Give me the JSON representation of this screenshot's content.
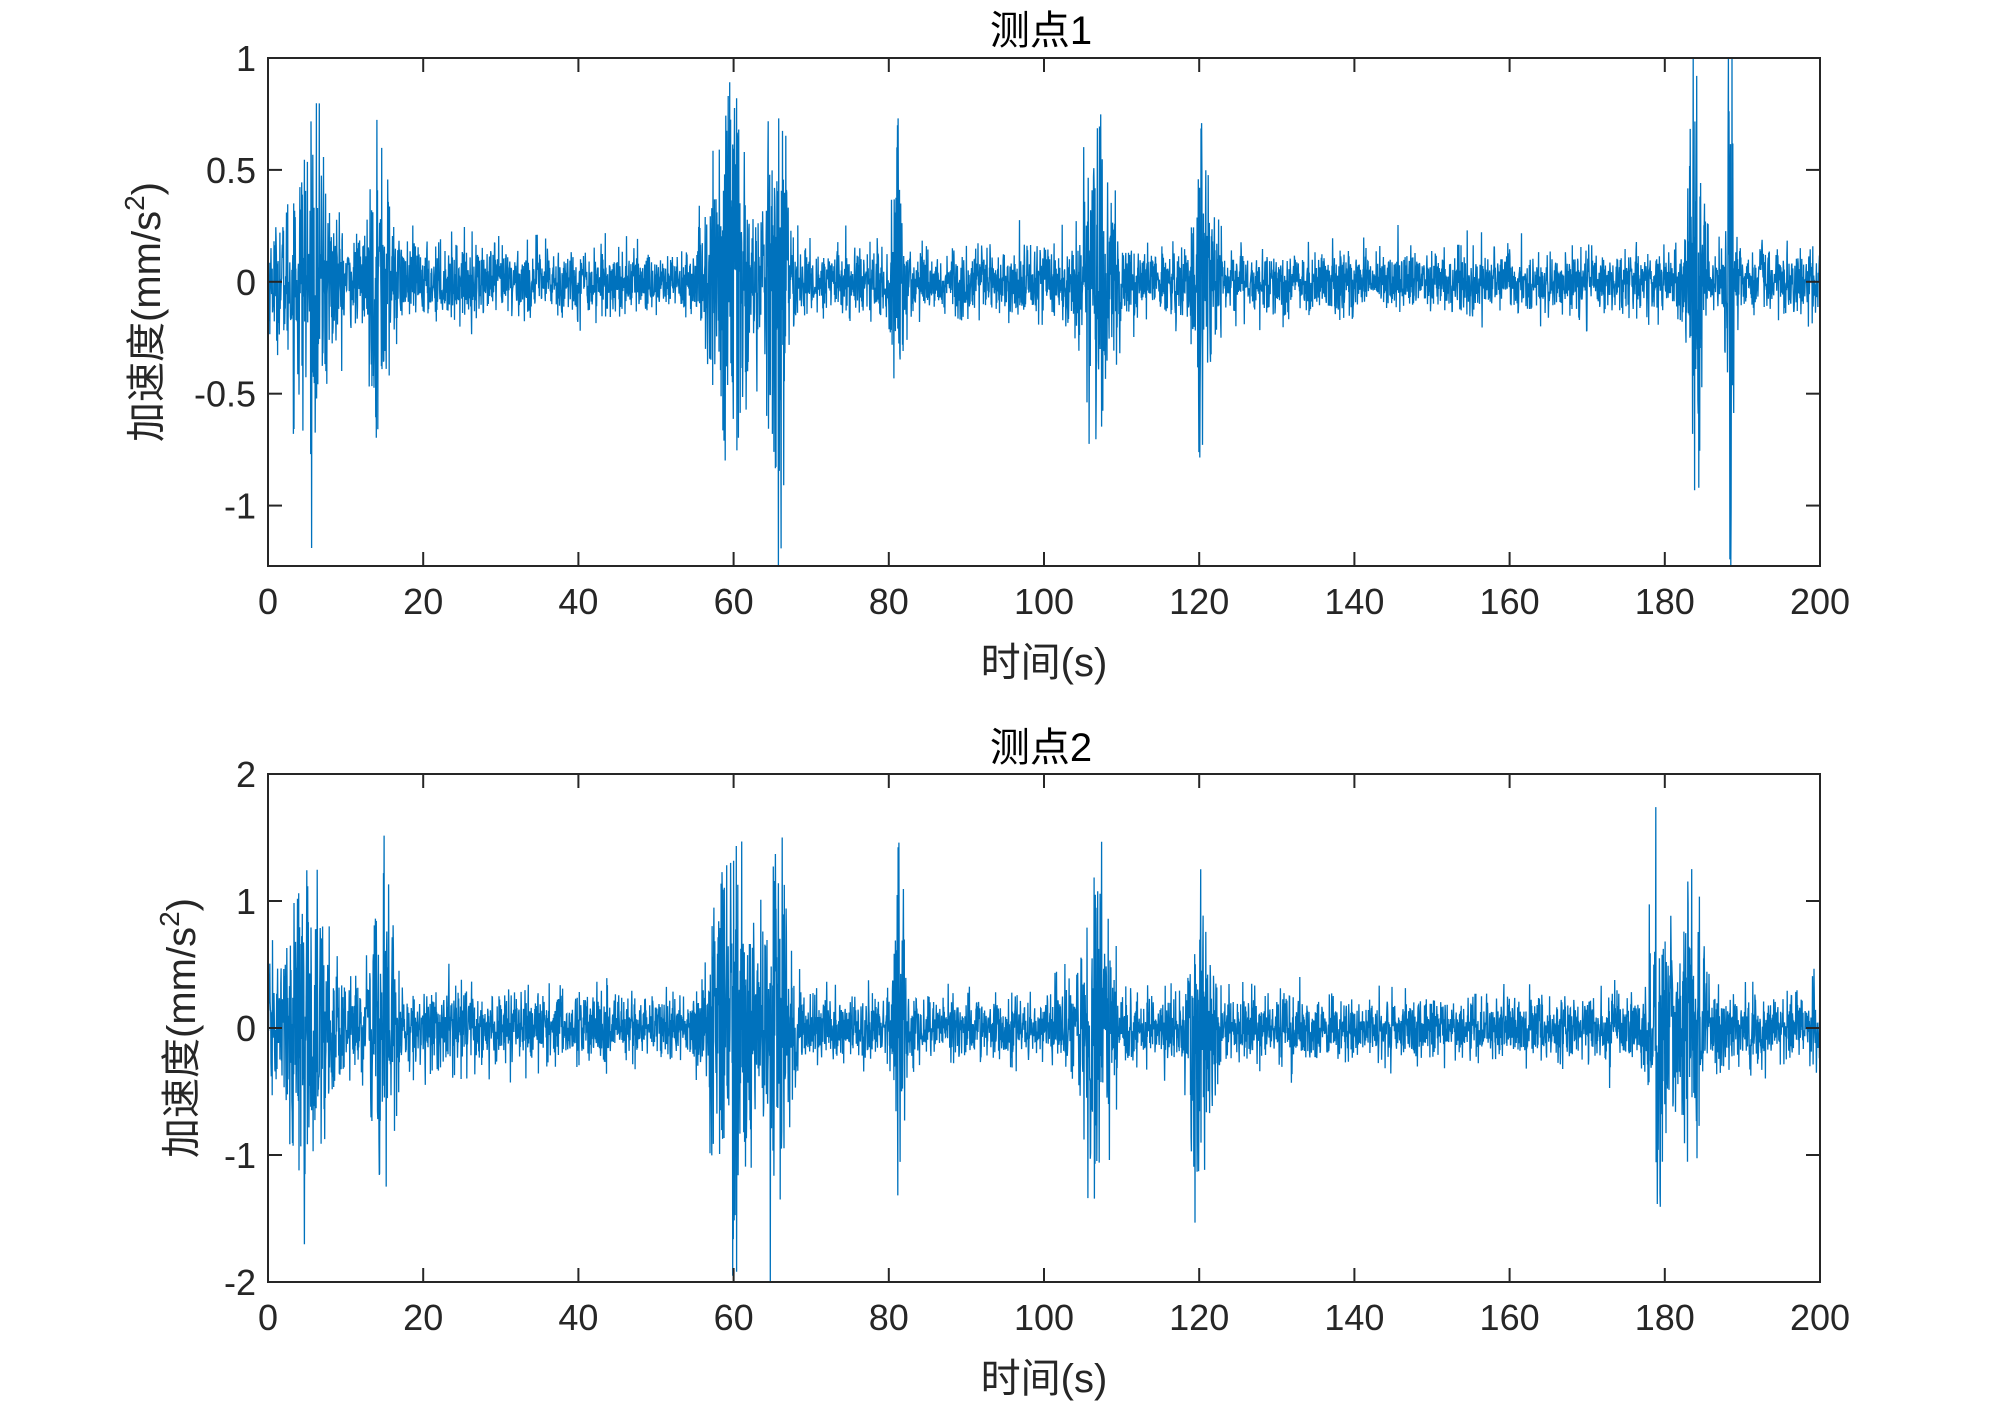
{
  "chart_data": [
    {
      "type": "line",
      "title": "测点1",
      "xlabel": "时间(s)",
      "ylabel_main": "加速度(mm/s",
      "ylabel_sup": "2",
      "ylabel_close": ")",
      "xlim": [
        0,
        200
      ],
      "ylim": [
        -1.27,
        1.0
      ],
      "xticks": [
        0,
        20,
        40,
        60,
        80,
        100,
        120,
        140,
        160,
        180,
        200
      ],
      "xtick_labels": [
        "0",
        "20",
        "40",
        "60",
        "80",
        "100",
        "120",
        "140",
        "160",
        "180",
        "200"
      ],
      "yticks": [
        -1,
        -0.5,
        0,
        0.5,
        1
      ],
      "ytick_labels": [
        "-1",
        "-0.5",
        "0",
        "0.5",
        "1"
      ],
      "series_color": "#0072BD",
      "signal": {
        "duration": 200,
        "envelope": [
          [
            0,
            0.18
          ],
          [
            10,
            0.16
          ],
          [
            50,
            0.13
          ],
          [
            100,
            0.14
          ],
          [
            150,
            0.12
          ],
          [
            200,
            0.14
          ]
        ],
        "bursts": [
          {
            "t": 5.5,
            "width": 3,
            "amp": 0.45
          },
          {
            "t": 14.5,
            "width": 1.5,
            "amp": 0.45
          },
          {
            "t": 59.5,
            "width": 2.5,
            "amp": 0.75
          },
          {
            "t": 65.5,
            "width": 1.5,
            "amp": 0.7
          },
          {
            "t": 81,
            "width": 0.8,
            "amp": 0.6
          },
          {
            "t": 107,
            "width": 2,
            "amp": 0.55
          },
          {
            "t": 120.5,
            "width": 1.5,
            "amp": 0.5
          },
          {
            "t": 184,
            "width": 1,
            "amp": 0.8
          },
          {
            "t": 188.5,
            "width": 0.5,
            "amp": 1.15
          }
        ],
        "peaks": [
          {
            "t": 59.3,
            "v": 0.83
          },
          {
            "t": 60.4,
            "v": 0.82
          },
          {
            "t": 65.8,
            "v": 0.73
          },
          {
            "t": 65.2,
            "v": -0.76
          },
          {
            "t": 81.2,
            "v": 0.73
          },
          {
            "t": 5.5,
            "v": -0.77
          },
          {
            "t": 184.1,
            "v": 0.92
          },
          {
            "t": 184.4,
            "v": -0.92
          },
          {
            "t": 188.2,
            "v": 1.0
          },
          {
            "t": 188.5,
            "v": -1.27
          }
        ]
      }
    },
    {
      "type": "line",
      "title": "测点2",
      "xlabel": "时间(s)",
      "ylabel_main": "加速度(mm/s",
      "ylabel_sup": "2",
      "ylabel_close": ")",
      "xlim": [
        0,
        200
      ],
      "ylim": [
        -2,
        2
      ],
      "xticks": [
        0,
        20,
        40,
        60,
        80,
        100,
        120,
        140,
        160,
        180,
        200
      ],
      "xtick_labels": [
        "0",
        "20",
        "40",
        "60",
        "80",
        "100",
        "120",
        "140",
        "160",
        "180",
        "200"
      ],
      "yticks": [
        -2,
        -1,
        0,
        1,
        2
      ],
      "ytick_labels": [
        "-2",
        "-1",
        "0",
        "1",
        "2"
      ],
      "series_color": "#0072BD",
      "signal": {
        "duration": 200,
        "envelope": [
          [
            0,
            0.35
          ],
          [
            10,
            0.3
          ],
          [
            50,
            0.24
          ],
          [
            100,
            0.24
          ],
          [
            150,
            0.22
          ],
          [
            200,
            0.26
          ]
        ],
        "bursts": [
          {
            "t": 5,
            "width": 3,
            "amp": 0.8
          },
          {
            "t": 14.8,
            "width": 1.5,
            "amp": 1.1
          },
          {
            "t": 59.8,
            "width": 2.5,
            "amp": 1.4
          },
          {
            "t": 65.5,
            "width": 1.8,
            "amp": 1.3
          },
          {
            "t": 81.2,
            "width": 0.8,
            "amp": 1.2
          },
          {
            "t": 106.8,
            "width": 2,
            "amp": 1.0
          },
          {
            "t": 120.2,
            "width": 1.5,
            "amp": 1.1
          },
          {
            "t": 179.5,
            "width": 1.5,
            "amp": 0.9
          },
          {
            "t": 183.5,
            "width": 1.5,
            "amp": 0.8
          }
        ],
        "peaks": [
          {
            "t": 59.9,
            "v": -1.95
          },
          {
            "t": 60.4,
            "v": -1.92
          },
          {
            "t": 59.6,
            "v": 1.3
          },
          {
            "t": 65.4,
            "v": 1.37
          },
          {
            "t": 66.0,
            "v": -1.35
          },
          {
            "t": 81.3,
            "v": 1.46
          },
          {
            "t": 14.9,
            "v": 1.22
          },
          {
            "t": 14.3,
            "v": -0.9
          },
          {
            "t": 106.6,
            "v": 1.05
          },
          {
            "t": 107.1,
            "v": -1.06
          },
          {
            "t": 120.2,
            "v": 1.25
          },
          {
            "t": 5.8,
            "v": -0.97
          }
        ]
      }
    }
  ]
}
